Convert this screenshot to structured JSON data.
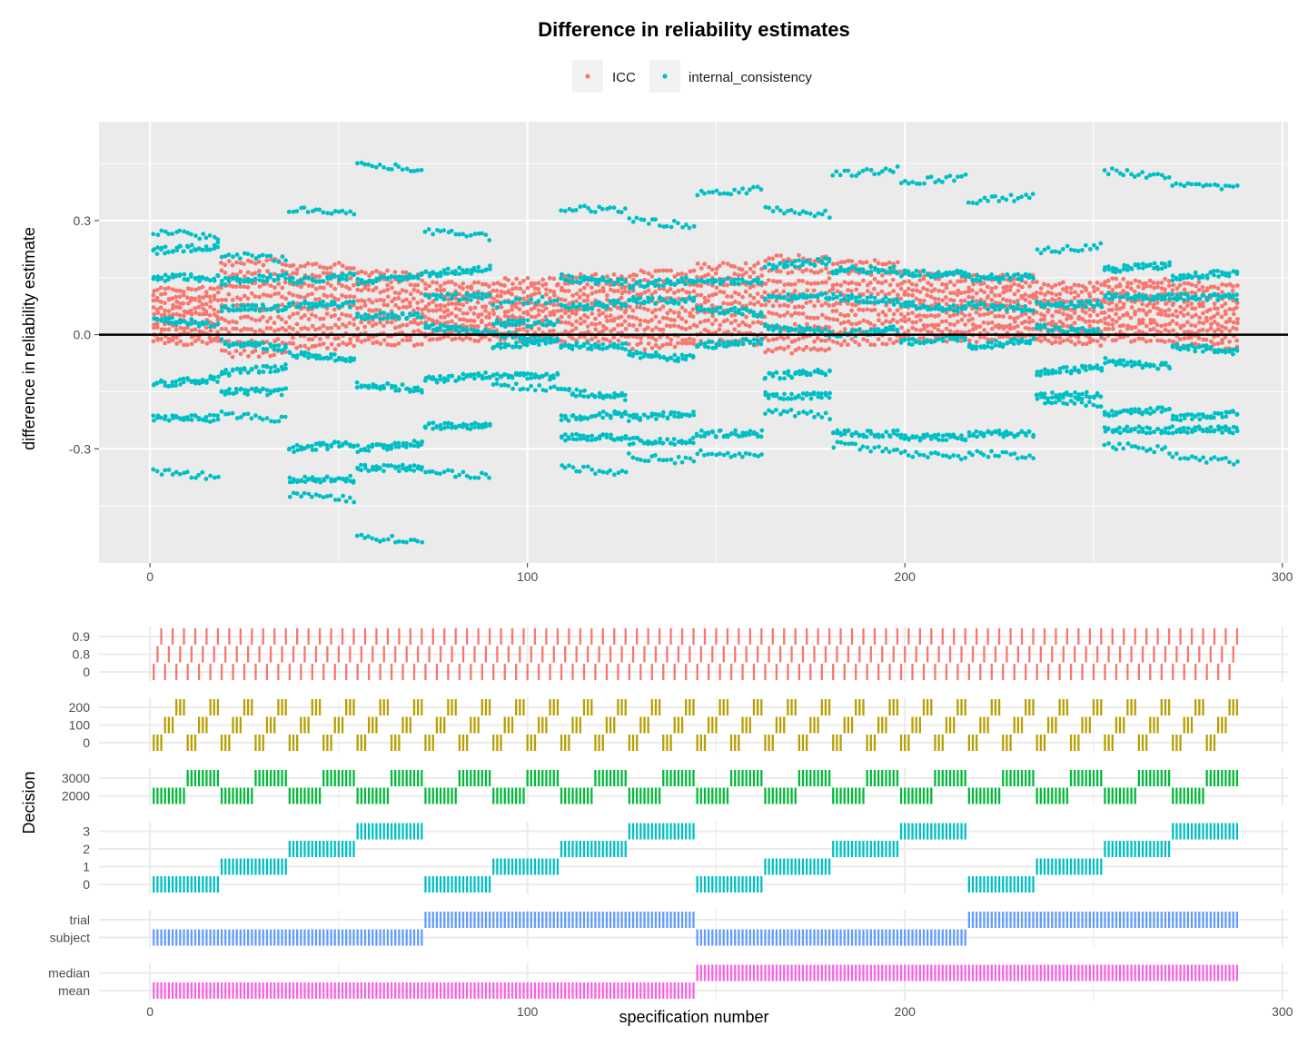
{
  "chart_data": [
    {
      "type": "scatter",
      "title": "Difference in reliability estimates",
      "xlabel": "",
      "ylabel": "difference in reliability estimate",
      "xlim": [
        -13.5,
        301.5
      ],
      "ylim": [
        -0.6,
        0.56
      ],
      "x_ticks": [
        0,
        100,
        200,
        300
      ],
      "x_tick_labels": [
        "0",
        "100",
        "200",
        "300"
      ],
      "y_ticks": [
        -0.3,
        0.0,
        0.3
      ],
      "y_tick_labels": [
        "-0.3",
        "0.0",
        "0.3"
      ],
      "reference_line_y": 0,
      "grid": true,
      "legend_position": "top",
      "specifications": 288,
      "series": [
        {
          "name": "ICC",
          "color": "#F8766D",
          "bands": [
            {
              "x_range": [
                1,
                18
              ],
              "y": [
                -0.02,
                0.12
              ]
            },
            {
              "x_range": [
                19,
                36
              ],
              "y": [
                -0.05,
                0.19
              ]
            },
            {
              "x_range": [
                37,
                54
              ],
              "y": [
                -0.03,
                0.18
              ]
            },
            {
              "x_range": [
                55,
                72
              ],
              "y": [
                -0.02,
                0.16
              ]
            },
            {
              "x_range": [
                73,
                90
              ],
              "y": [
                -0.01,
                0.13
              ]
            },
            {
              "x_range": [
                91,
                108
              ],
              "y": [
                -0.01,
                0.14
              ]
            },
            {
              "x_range": [
                109,
                126
              ],
              "y": [
                -0.01,
                0.15
              ]
            },
            {
              "x_range": [
                127,
                144
              ],
              "y": [
                -0.03,
                0.16
              ]
            },
            {
              "x_range": [
                145,
                162
              ],
              "y": [
                -0.02,
                0.18
              ]
            },
            {
              "x_range": [
                163,
                180
              ],
              "y": [
                -0.04,
                0.2
              ]
            },
            {
              "x_range": [
                181,
                198
              ],
              "y": [
                -0.02,
                0.19
              ]
            },
            {
              "x_range": [
                199,
                216
              ],
              "y": [
                -0.01,
                0.16
              ]
            },
            {
              "x_range": [
                217,
                234
              ],
              "y": [
                -0.01,
                0.15
              ]
            },
            {
              "x_range": [
                235,
                252
              ],
              "y": [
                -0.02,
                0.13
              ]
            },
            {
              "x_range": [
                253,
                270
              ],
              "y": [
                -0.01,
                0.14
              ]
            },
            {
              "x_range": [
                271,
                288
              ],
              "y": [
                -0.03,
                0.13
              ]
            }
          ]
        },
        {
          "name": "internal_consistency",
          "color": "#00BFC4",
          "bands": [
            {
              "x_range": [
                1,
                18
              ],
              "y": [
                -0.36,
                -0.22,
                -0.13,
                0.04,
                0.15,
                0.22,
                0.27
              ]
            },
            {
              "x_range": [
                19,
                36
              ],
              "y": [
                -0.21,
                -0.15,
                -0.1,
                -0.02,
                0.07,
                0.14,
                0.21
              ]
            },
            {
              "x_range": [
                37,
                54
              ],
              "y": [
                -0.42,
                -0.38,
                -0.3,
                -0.05,
                0.08,
                0.14,
                0.33
              ]
            },
            {
              "x_range": [
                55,
                72
              ],
              "y": [
                -0.53,
                -0.35,
                -0.3,
                -0.13,
                0.05,
                0.14,
                0.45
              ]
            },
            {
              "x_range": [
                73,
                90
              ],
              "y": [
                -0.36,
                -0.24,
                -0.12,
                0.02,
                0.1,
                0.16,
                0.27
              ]
            },
            {
              "x_range": [
                91,
                108
              ],
              "y": [
                -0.13,
                -0.11,
                -0.03,
                0.0,
                0.03,
                0.08
              ]
            },
            {
              "x_range": [
                109,
                126
              ],
              "y": [
                -0.35,
                -0.27,
                -0.22,
                -0.15,
                -0.03,
                0.07,
                0.15,
                0.33
              ]
            },
            {
              "x_range": [
                127,
                144
              ],
              "y": [
                -0.32,
                -0.28,
                -0.22,
                -0.05,
                0.09,
                0.13,
                0.3
              ]
            },
            {
              "x_range": [
                145,
                162
              ],
              "y": [
                -0.31,
                -0.26,
                -0.03,
                0.07,
                0.14,
                0.37
              ]
            },
            {
              "x_range": [
                163,
                180
              ],
              "y": [
                -0.2,
                -0.16,
                -0.11,
                0.02,
                0.1,
                0.18,
                0.33
              ]
            },
            {
              "x_range": [
                181,
                198
              ],
              "y": [
                -0.29,
                -0.26,
                0.0,
                0.1,
                0.17,
                0.42
              ]
            },
            {
              "x_range": [
                199,
                216
              ],
              "y": [
                -0.31,
                -0.27,
                -0.02,
                0.08,
                0.16,
                0.4
              ]
            },
            {
              "x_range": [
                217,
                234
              ],
              "y": [
                -0.31,
                -0.26,
                -0.03,
                0.08,
                0.15,
                0.35
              ]
            },
            {
              "x_range": [
                235,
                252
              ],
              "y": [
                -0.17,
                -0.16,
                -0.1,
                0.02,
                0.08,
                0.22
              ]
            },
            {
              "x_range": [
                253,
                270
              ],
              "y": [
                -0.29,
                -0.25,
                -0.21,
                -0.07,
                0.1,
                0.17,
                0.43
              ]
            },
            {
              "x_range": [
                271,
                288
              ],
              "y": [
                -0.32,
                -0.25,
                -0.22,
                -0.03,
                0.1,
                0.15,
                0.4
              ]
            }
          ]
        }
      ]
    },
    {
      "type": "tile",
      "ylabel": "Decision",
      "xlabel": "specification number",
      "xlim": [
        -13.5,
        301.5
      ],
      "x_ticks": [
        0,
        100,
        200,
        300
      ],
      "x_tick_labels": [
        "0",
        "100",
        "200",
        "300"
      ],
      "specifications": 288,
      "rows": [
        {
          "levels": [
            "0",
            "0.8",
            "0.9"
          ],
          "color": "#F8766D",
          "period": 1
        },
        {
          "levels": [
            "0",
            "100",
            "200"
          ],
          "color": "#B79F00",
          "period": 3
        },
        {
          "levels": [
            "2000",
            "3000"
          ],
          "color": "#00BA38",
          "period": 9
        },
        {
          "levels": [
            "0",
            "1",
            "2",
            "3"
          ],
          "color": "#00BFC4",
          "period": 18
        },
        {
          "levels": [
            "subject",
            "trial"
          ],
          "color": "#619CFF",
          "period": 72
        },
        {
          "levels": [
            "mean",
            "median"
          ],
          "color": "#F564E3",
          "period": 144
        }
      ]
    }
  ],
  "legend": {
    "items": [
      "ICC",
      "internal_consistency"
    ]
  }
}
